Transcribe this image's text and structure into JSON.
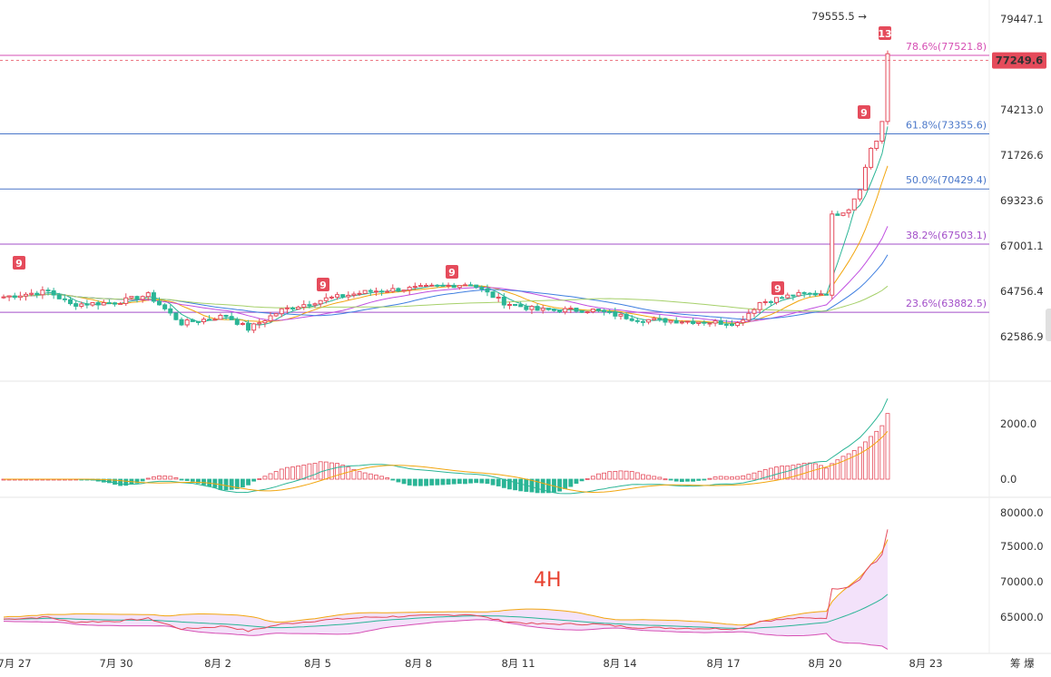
{
  "watermark": "4H",
  "chart_data": {
    "type": "candlestick",
    "x_ticks": [
      "7月 27",
      "7月 30",
      "8月 2",
      "8月 5",
      "8月 8",
      "8月 11",
      "8月 14",
      "8月 17",
      "8月 20",
      "8月 23"
    ],
    "price_axis": {
      "ticks": [
        "79447.1",
        "77249.6",
        "74213.0",
        "71726.6",
        "69323.6",
        "67001.1",
        "64756.4",
        "62586.9"
      ],
      "current_price": "77249.6",
      "high_marker": "79555.5"
    },
    "fib_levels": [
      {
        "label": "78.6%(77521.8)",
        "value": 77521.8,
        "color": "#d64fb4"
      },
      {
        "label": "61.8%(73355.6)",
        "value": 73355.6,
        "color": "#4a77c9"
      },
      {
        "label": "50.0%(70429.4)",
        "value": 70429.4,
        "color": "#4a77c9"
      },
      {
        "label": "38.2%(67503.1)",
        "value": 67503.1,
        "color": "#a34fc9"
      },
      {
        "label": "23.6%(63882.5)",
        "value": 63882.5,
        "color": "#a34fc9"
      }
    ],
    "sequential_badges": [
      "9",
      "9",
      "9",
      "9",
      "9",
      "13"
    ],
    "macd_axis": {
      "ticks": [
        "2000.0",
        "0.0"
      ]
    },
    "lower_axis": {
      "ticks": [
        "80000.0",
        "75000.0",
        "70000.0",
        "65000.0"
      ]
    },
    "colors": {
      "up": "#e54b5b",
      "down": "#2bb596",
      "accent": "#d64fb4"
    },
    "right_footer": "筹 爆"
  }
}
